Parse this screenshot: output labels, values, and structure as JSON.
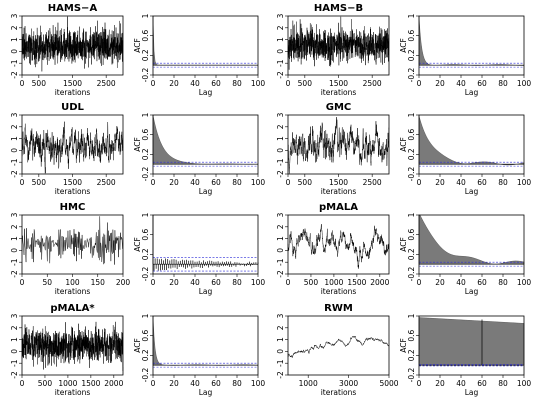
{
  "chart_data": [
    {
      "id": "hams-a-trace",
      "type": "line",
      "title": "HAMS−A",
      "xlabel": "iterations",
      "ylabel": "",
      "xlim": [
        0,
        3000
      ],
      "ylim": [
        -2,
        3
      ],
      "xticks": [
        0,
        500,
        1500,
        2500
      ],
      "yticks": [
        -2,
        -1,
        0,
        1,
        2,
        3
      ],
      "n": 3000,
      "mean": 0.45,
      "sd": 0.7,
      "ar": 0.1,
      "seed": 11,
      "style": "dense"
    },
    {
      "id": "hams-a-acf",
      "type": "area",
      "title": "",
      "xlabel": "Lag",
      "ylabel": "ACF",
      "xlim": [
        0,
        100
      ],
      "ylim": [
        -0.2,
        1.0
      ],
      "xticks": [
        0,
        20,
        40,
        60,
        80,
        100
      ],
      "yticks": [
        -0.2,
        0.2,
        0.6,
        1.0
      ],
      "conf": 0.04,
      "decay": 0.8,
      "tail": 0.0,
      "seed": 21,
      "style": "area"
    },
    {
      "id": "hams-b-trace",
      "type": "line",
      "title": "HAMS−B",
      "xlabel": "iterations",
      "ylabel": "",
      "xlim": [
        0,
        3000
      ],
      "ylim": [
        -2,
        3
      ],
      "xticks": [
        0,
        500,
        1500,
        2500
      ],
      "yticks": [
        -2,
        -1,
        0,
        1,
        2,
        3
      ],
      "n": 3000,
      "mean": 0.5,
      "sd": 0.7,
      "ar": 0.2,
      "seed": 12,
      "style": "dense"
    },
    {
      "id": "hams-b-acf",
      "type": "area",
      "title": "",
      "xlabel": "Lag",
      "ylabel": "ACF",
      "xlim": [
        0,
        100
      ],
      "ylim": [
        -0.2,
        1.0
      ],
      "xticks": [
        0,
        20,
        40,
        60,
        80,
        100
      ],
      "yticks": [
        -0.2,
        0.2,
        0.6,
        1.0
      ],
      "conf": 0.04,
      "decay": 2.5,
      "tail": 0.02,
      "seed": 22,
      "style": "area"
    },
    {
      "id": "udl-trace",
      "type": "line",
      "title": "UDL",
      "xlabel": "iterations",
      "ylabel": "",
      "xlim": [
        0,
        3000
      ],
      "ylim": [
        -2,
        3
      ],
      "xticks": [
        0,
        500,
        1500,
        2500
      ],
      "yticks": [
        -2,
        -1,
        0,
        1,
        2,
        3
      ],
      "n": 3000,
      "mean": 0.45,
      "sd": 0.75,
      "ar": 0.93,
      "seed": 13,
      "style": "dense"
    },
    {
      "id": "udl-acf",
      "type": "area",
      "title": "",
      "xlabel": "Lag",
      "ylabel": "ACF",
      "xlim": [
        0,
        100
      ],
      "ylim": [
        -0.2,
        1.0
      ],
      "xticks": [
        0,
        20,
        40,
        60,
        80,
        100
      ],
      "yticks": [
        -0.2,
        0.2,
        0.6,
        1.0
      ],
      "conf": 0.04,
      "decay": 9,
      "tail": 0.01,
      "seed": 23,
      "style": "area"
    },
    {
      "id": "gmc-trace",
      "type": "line",
      "title": "GMC",
      "xlabel": "iterations",
      "ylabel": "",
      "xlim": [
        0,
        3000
      ],
      "ylim": [
        -2,
        3
      ],
      "xticks": [
        0,
        500,
        1500,
        2500
      ],
      "yticks": [
        -2,
        -1,
        0,
        1,
        2,
        3
      ],
      "n": 3000,
      "mean": 0.5,
      "sd": 0.75,
      "ar": 0.95,
      "seed": 14,
      "style": "dense"
    },
    {
      "id": "gmc-acf",
      "type": "area",
      "title": "",
      "xlabel": "Lag",
      "ylabel": "ACF",
      "xlim": [
        0,
        100
      ],
      "ylim": [
        -0.2,
        1.0
      ],
      "xticks": [
        0,
        20,
        40,
        60,
        80,
        100
      ],
      "yticks": [
        -0.2,
        0.2,
        0.6,
        1.0
      ],
      "conf": 0.04,
      "decay": 12,
      "tail": 0.06,
      "seed": 24,
      "style": "area"
    },
    {
      "id": "hmc-trace",
      "type": "line",
      "title": "HMC",
      "xlabel": "iterations",
      "ylabel": "",
      "xlim": [
        0,
        200
      ],
      "ylim": [
        -2,
        3
      ],
      "xticks": [
        0,
        50,
        100,
        150,
        200
      ],
      "yticks": [
        -2,
        -1,
        0,
        1,
        2,
        3
      ],
      "n": 200,
      "mean": 0.6,
      "sd": 0.8,
      "ar": -0.6,
      "seed": 15,
      "style": "sparse"
    },
    {
      "id": "hmc-acf",
      "type": "bar",
      "title": "",
      "xlabel": "Lag",
      "ylabel": "ACF",
      "xlim": [
        0,
        100
      ],
      "ylim": [
        -0.2,
        1.0
      ],
      "xticks": [
        0,
        20,
        40,
        60,
        80,
        100
      ],
      "yticks": [
        -0.2,
        0.2,
        0.6,
        1.0
      ],
      "conf": 0.14,
      "decay": 0.3,
      "tail": 0.0,
      "alternate": true,
      "seed": 25,
      "style": "bars"
    },
    {
      "id": "pmala-trace",
      "type": "line",
      "title": "pMALA",
      "xlabel": "iterations",
      "ylabel": "",
      "xlim": [
        0,
        2200
      ],
      "ylim": [
        -2,
        3
      ],
      "xticks": [
        0,
        500,
        1000,
        1500,
        2000
      ],
      "yticks": [
        -2,
        -1,
        0,
        1,
        2,
        3
      ],
      "n": 2200,
      "mean": 0.6,
      "sd": 0.65,
      "ar": 0.985,
      "seed": 16,
      "style": "dense"
    },
    {
      "id": "pmala-acf",
      "type": "area",
      "title": "",
      "xlabel": "Lag",
      "ylabel": "ACF",
      "xlim": [
        0,
        100
      ],
      "ylim": [
        -0.2,
        1.0
      ],
      "xticks": [
        0,
        20,
        40,
        60,
        80,
        100
      ],
      "yticks": [
        -0.2,
        0.2,
        0.6,
        1.0
      ],
      "conf": 0.04,
      "decay": 20,
      "tail": 0.08,
      "seed": 26,
      "style": "area"
    },
    {
      "id": "pmala-star-trace",
      "type": "line",
      "title": "pMALA*",
      "xlabel": "iterations",
      "ylabel": "",
      "xlim": [
        0,
        2200
      ],
      "ylim": [
        -2,
        3
      ],
      "xticks": [
        0,
        500,
        1000,
        1500,
        2000
      ],
      "yticks": [
        -2,
        -1,
        0,
        1,
        2,
        3
      ],
      "n": 2200,
      "mean": 0.5,
      "sd": 0.65,
      "ar": 0.35,
      "seed": 17,
      "style": "dense"
    },
    {
      "id": "pmala-star-acf",
      "type": "area",
      "title": "",
      "xlabel": "Lag",
      "ylabel": "ACF",
      "xlim": [
        0,
        100
      ],
      "ylim": [
        -0.2,
        1.0
      ],
      "xticks": [
        0,
        20,
        40,
        60,
        80,
        100
      ],
      "yticks": [
        -0.2,
        0.2,
        0.6,
        1.0
      ],
      "conf": 0.04,
      "decay": 1.8,
      "tail": 0.015,
      "seed": 27,
      "style": "area"
    },
    {
      "id": "rwm-trace",
      "type": "line",
      "title": "RWM",
      "xlabel": "iterations",
      "ylabel": "",
      "xlim": [
        0,
        5000
      ],
      "ylim": [
        -2,
        3
      ],
      "xticks": [
        1000,
        3000,
        5000
      ],
      "yticks": [
        -2,
        -1,
        0,
        1,
        2,
        3
      ],
      "n": 5000,
      "mean": -0.5,
      "end": 1.4,
      "sd": 0.12,
      "ar": 0.999,
      "seed": 18,
      "style": "walk"
    },
    {
      "id": "rwm-acf",
      "type": "area",
      "title": "",
      "xlabel": "Lag",
      "ylabel": "ACF",
      "xlim": [
        0,
        100
      ],
      "ylim": [
        -0.2,
        1.0
      ],
      "xticks": [
        0,
        20,
        40,
        60,
        80,
        100
      ],
      "yticks": [
        -0.2,
        0.2,
        0.6,
        1.0
      ],
      "conf": 0.015,
      "decay": 500,
      "tail": 0.0,
      "spike": 60,
      "seed": 28,
      "style": "flat"
    }
  ]
}
